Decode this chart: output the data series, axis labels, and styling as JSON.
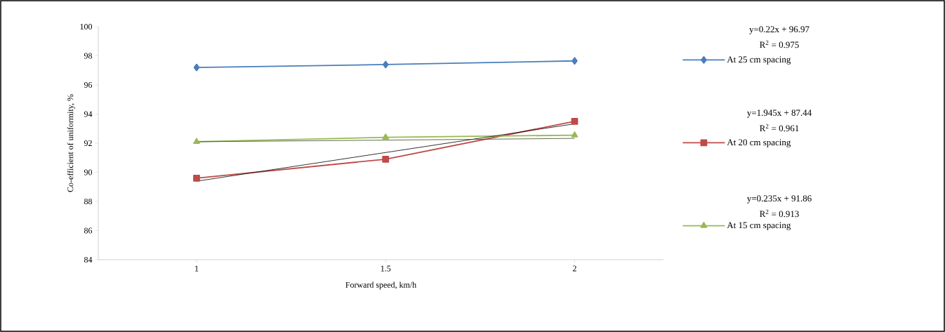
{
  "chart_data": {
    "type": "line",
    "xlabel": "Forward speed, km/h",
    "ylabel": "Co-efficient of uniformity, %",
    "categories": [
      "1",
      "1.5",
      "2"
    ],
    "series": [
      {
        "name": "At 25 cm spacing",
        "color": "#4a7ebb",
        "marker": "diamond",
        "values": [
          97.2,
          97.4,
          97.65
        ]
      },
      {
        "name": "At 20 cm spacing",
        "color": "#be4b48",
        "marker": "square",
        "values": [
          89.6,
          90.9,
          93.5
        ]
      },
      {
        "name": "At 15 cm spacing",
        "color": "#98b954",
        "marker": "triangle",
        "values": [
          92.1,
          92.4,
          92.55
        ]
      },
      {
        "color": "#000000",
        "marker": "none",
        "values": [
          89.39,
          91.36,
          93.33
        ]
      },
      {
        "color": "#3c4a20",
        "marker": "none",
        "values": [
          92.1,
          92.21,
          92.33
        ]
      }
    ],
    "ylim": [
      84,
      100
    ],
    "yticks": [
      84,
      86,
      88,
      90,
      92,
      94,
      96,
      98,
      100
    ],
    "legend": "right",
    "grid": false,
    "annotations": [
      "y=0.22x + 96.97",
      "R$^{2}$ = 0.975",
      "y=1.945x + 87.44",
      "R$^{2}$ = 0.961",
      "y=0.235x + 91.86",
      "R$^{2}$ = 0.913"
    ]
  }
}
